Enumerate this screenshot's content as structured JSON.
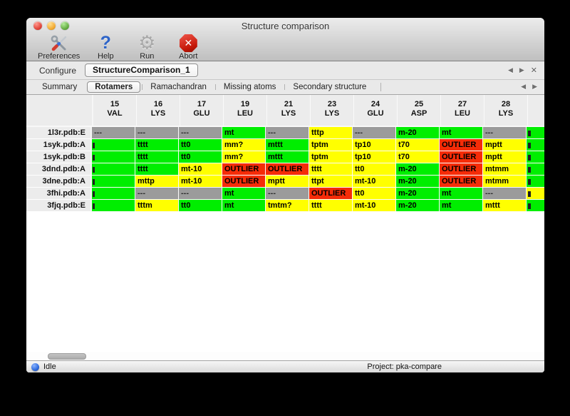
{
  "window": {
    "title": "Structure comparison"
  },
  "toolbar": {
    "items": [
      {
        "label": "Preferences",
        "icon": "tools-icon"
      },
      {
        "label": "Help",
        "icon": "help-icon"
      },
      {
        "label": "Run",
        "icon": "gear-icon"
      },
      {
        "label": "Abort",
        "icon": "abort-icon"
      }
    ]
  },
  "configure": {
    "label": "Configure",
    "value": "StructureComparison_1"
  },
  "icons": {
    "prev": "◀",
    "next": "▶",
    "close": "✕"
  },
  "tabs": [
    {
      "label": "Summary",
      "selected": false
    },
    {
      "label": "Rotamers",
      "selected": true
    },
    {
      "label": "Ramachandran",
      "selected": false
    },
    {
      "label": "Missing atoms",
      "selected": false
    },
    {
      "label": "Secondary structure",
      "selected": false
    }
  ],
  "table": {
    "status_colors": {
      "ok": "#00ee00",
      "warn": "#ffff00",
      "outlier": "#f52c08",
      "missing": "#9b9b9b"
    },
    "columns": [
      {
        "num": "15",
        "res": "VAL"
      },
      {
        "num": "16",
        "res": "LYS"
      },
      {
        "num": "17",
        "res": "GLU"
      },
      {
        "num": "19",
        "res": "LEU"
      },
      {
        "num": "21",
        "res": "LYS"
      },
      {
        "num": "23",
        "res": "LYS"
      },
      {
        "num": "24",
        "res": "GLU"
      },
      {
        "num": "25",
        "res": "ASP"
      },
      {
        "num": "27",
        "res": "LEU"
      },
      {
        "num": "28",
        "res": "LYS"
      }
    ],
    "rows": [
      {
        "label": "1l3r.pdb:E",
        "edge": "ok",
        "cells": [
          {
            "t": "---",
            "s": "missing"
          },
          {
            "t": "---",
            "s": "missing"
          },
          {
            "t": "---",
            "s": "missing"
          },
          {
            "t": "mt",
            "s": "ok"
          },
          {
            "t": "---",
            "s": "missing"
          },
          {
            "t": "tttp",
            "s": "warn"
          },
          {
            "t": "---",
            "s": "missing"
          },
          {
            "t": "m-20",
            "s": "ok"
          },
          {
            "t": "mt",
            "s": "ok"
          },
          {
            "t": "---",
            "s": "missing"
          }
        ]
      },
      {
        "label": "1syk.pdb:A",
        "edge": "ok",
        "cells": [
          {
            "t": "",
            "s": "ok",
            "clip": true
          },
          {
            "t": "tttt",
            "s": "ok"
          },
          {
            "t": "tt0",
            "s": "ok"
          },
          {
            "t": "mm?",
            "s": "warn"
          },
          {
            "t": "mttt",
            "s": "ok"
          },
          {
            "t": "tptm",
            "s": "warn"
          },
          {
            "t": "tp10",
            "s": "warn"
          },
          {
            "t": "t70",
            "s": "warn"
          },
          {
            "t": "OUTLIER",
            "s": "outlier"
          },
          {
            "t": "mptt",
            "s": "warn"
          }
        ]
      },
      {
        "label": "1syk.pdb:B",
        "edge": "ok",
        "cells": [
          {
            "t": "",
            "s": "ok",
            "clip": true
          },
          {
            "t": "tttt",
            "s": "ok"
          },
          {
            "t": "tt0",
            "s": "ok"
          },
          {
            "t": "mm?",
            "s": "warn"
          },
          {
            "t": "mttt",
            "s": "ok"
          },
          {
            "t": "tptm",
            "s": "warn"
          },
          {
            "t": "tp10",
            "s": "warn"
          },
          {
            "t": "t70",
            "s": "warn"
          },
          {
            "t": "OUTLIER",
            "s": "outlier"
          },
          {
            "t": "mptt",
            "s": "warn"
          }
        ]
      },
      {
        "label": "3dnd.pdb:A",
        "edge": "ok",
        "cells": [
          {
            "t": "",
            "s": "ok",
            "clip": true
          },
          {
            "t": "tttt",
            "s": "ok"
          },
          {
            "t": "mt-10",
            "s": "warn"
          },
          {
            "t": "OUTLIER",
            "s": "outlier"
          },
          {
            "t": "OUTLIER",
            "s": "outlier"
          },
          {
            "t": "tttt",
            "s": "warn"
          },
          {
            "t": "tt0",
            "s": "warn"
          },
          {
            "t": "m-20",
            "s": "ok"
          },
          {
            "t": "OUTLIER",
            "s": "outlier"
          },
          {
            "t": "mtmm",
            "s": "warn"
          }
        ]
      },
      {
        "label": "3dne.pdb:A",
        "edge": "ok",
        "cells": [
          {
            "t": "",
            "s": "ok",
            "clip": true
          },
          {
            "t": "mttp",
            "s": "warn"
          },
          {
            "t": "mt-10",
            "s": "warn"
          },
          {
            "t": "OUTLIER",
            "s": "outlier"
          },
          {
            "t": "mptt",
            "s": "warn"
          },
          {
            "t": "ttpt",
            "s": "warn"
          },
          {
            "t": "mt-10",
            "s": "warn"
          },
          {
            "t": "m-20",
            "s": "ok"
          },
          {
            "t": "OUTLIER",
            "s": "outlier"
          },
          {
            "t": "mtmm",
            "s": "warn"
          }
        ]
      },
      {
        "label": "3fhi.pdb:A",
        "edge": "warn",
        "cells": [
          {
            "t": "",
            "s": "ok",
            "clip": true
          },
          {
            "t": "---",
            "s": "missing"
          },
          {
            "t": "---",
            "s": "missing"
          },
          {
            "t": "mt",
            "s": "ok"
          },
          {
            "t": "---",
            "s": "missing"
          },
          {
            "t": "OUTLIER",
            "s": "outlier"
          },
          {
            "t": "tt0",
            "s": "warn"
          },
          {
            "t": "m-20",
            "s": "ok"
          },
          {
            "t": "mt",
            "s": "ok"
          },
          {
            "t": "---",
            "s": "missing"
          }
        ]
      },
      {
        "label": "3fjq.pdb:E",
        "edge": "ok",
        "cells": [
          {
            "t": "",
            "s": "ok",
            "clip": true
          },
          {
            "t": "tttm",
            "s": "warn"
          },
          {
            "t": "tt0",
            "s": "ok"
          },
          {
            "t": "mt",
            "s": "ok"
          },
          {
            "t": "tmtm?",
            "s": "warn"
          },
          {
            "t": "tttt",
            "s": "warn"
          },
          {
            "t": "mt-10",
            "s": "warn"
          },
          {
            "t": "m-20",
            "s": "ok"
          },
          {
            "t": "mt",
            "s": "ok"
          },
          {
            "t": "mttt",
            "s": "warn"
          }
        ]
      }
    ]
  },
  "status": {
    "state": "Idle",
    "project": "Project: pka-compare"
  }
}
